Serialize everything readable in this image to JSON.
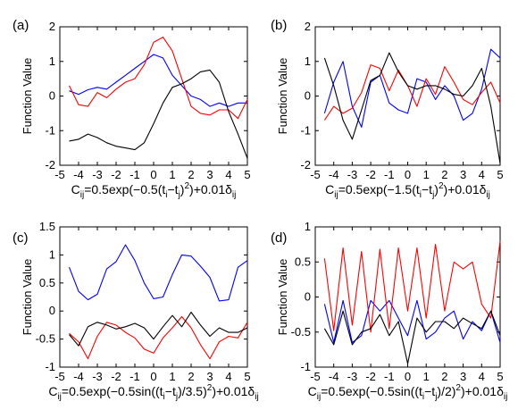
{
  "chart_data": [
    {
      "type": "line",
      "panel": "(a)",
      "ylabel": "Function Value",
      "xlabel_parts": [
        "C",
        "ij",
        "=0.5exp(−0.5(t",
        "i",
        "−t",
        "j",
        ")",
        "2",
        ")+0.01δ",
        "ij"
      ],
      "xlim": [
        -5,
        5
      ],
      "ylim": [
        -2,
        2
      ],
      "xticks": [
        "-5",
        "-4",
        "-3",
        "-2",
        "-1",
        "0",
        "1",
        "2",
        "3",
        "4",
        "5"
      ],
      "yticks": [
        "-2",
        "-1",
        "0",
        "1",
        "2"
      ],
      "x": [
        -4.5,
        -4,
        -3.5,
        -3,
        -2.5,
        -2,
        -1.5,
        -1,
        -0.5,
        0,
        0.5,
        1,
        1.5,
        2,
        2.5,
        3,
        3.5,
        4,
        4.5,
        5
      ],
      "series": [
        {
          "color": "#0000ff",
          "values": [
            0.15,
            0.05,
            0.18,
            0.25,
            0.2,
            0.4,
            0.6,
            0.8,
            1.0,
            1.2,
            1.1,
            0.6,
            0.3,
            0.0,
            -0.1,
            -0.3,
            -0.2,
            -0.3,
            -0.2,
            -0.2
          ]
        },
        {
          "color": "#ff0000",
          "values": [
            0.3,
            -0.25,
            -0.3,
            0.1,
            -0.05,
            0.2,
            0.4,
            0.5,
            0.9,
            1.55,
            1.7,
            1.3,
            0.5,
            -0.3,
            -0.5,
            -0.55,
            -0.4,
            -0.4,
            -0.65,
            -0.1
          ]
        },
        {
          "color": "#000000",
          "values": [
            -1.3,
            -1.25,
            -1.1,
            -1.2,
            -1.35,
            -1.45,
            -1.5,
            -1.55,
            -1.35,
            -0.8,
            -0.2,
            0.25,
            0.35,
            0.5,
            0.7,
            0.75,
            0.4,
            -0.45,
            -1.1,
            -1.8
          ]
        }
      ]
    },
    {
      "type": "line",
      "panel": "(b)",
      "ylabel": "Function Value",
      "xlabel_parts": [
        "C",
        "ij",
        "=0.5exp(−1.5(t",
        "i",
        "−t",
        "j",
        ")",
        "2",
        ")+0.01δ",
        "ij"
      ],
      "xlim": [
        -5,
        5
      ],
      "ylim": [
        -2,
        2
      ],
      "xticks": [
        "-5",
        "-4",
        "-3",
        "-2",
        "-1",
        "0",
        "1",
        "2",
        "3",
        "4",
        "5"
      ],
      "yticks": [
        "-2",
        "-1",
        "0",
        "1",
        "2"
      ],
      "x": [
        -4.5,
        -4,
        -3.5,
        -3,
        -2.5,
        -2,
        -1.5,
        -1,
        -0.5,
        0,
        0.5,
        1,
        1.5,
        2,
        2.5,
        3,
        3.5,
        4,
        4.5,
        5
      ],
      "series": [
        {
          "color": "#0000ff",
          "values": [
            -0.5,
            0.4,
            1.0,
            -0.3,
            -0.9,
            0.4,
            0.6,
            -0.2,
            -0.4,
            -0.5,
            0.5,
            0.4,
            -0.1,
            0.3,
            0.0,
            -0.7,
            -0.5,
            0.2,
            1.35,
            1.1
          ]
        },
        {
          "color": "#ff0000",
          "values": [
            -0.7,
            -0.3,
            -0.5,
            -0.35,
            0.1,
            0.9,
            0.8,
            0.15,
            0.75,
            0.3,
            -0.3,
            0.5,
            0.05,
            0.85,
            0.4,
            -0.1,
            -0.25,
            0.1,
            0.4,
            -0.2
          ]
        },
        {
          "color": "#000000",
          "values": [
            1.1,
            0.3,
            -0.7,
            -1.25,
            -0.4,
            0.45,
            0.6,
            1.25,
            0.7,
            0.3,
            0.2,
            0.3,
            0.3,
            0.2,
            0.05,
            0.0,
            0.3,
            0.8,
            -0.3,
            -1.95
          ]
        }
      ]
    },
    {
      "type": "line",
      "panel": "(c)",
      "ylabel": "Function Value",
      "xlabel_parts": [
        "C",
        "ij",
        "=0.5exp(−0.5sin((t",
        "i",
        "−t",
        "j",
        ")/3.5)",
        "2",
        ")+0.01δ",
        "ij"
      ],
      "xlim": [
        -5,
        5
      ],
      "ylim": [
        -1,
        1.5
      ],
      "xticks": [
        "-5",
        "-4",
        "-3",
        "-2",
        "-1",
        "0",
        "1",
        "2",
        "3",
        "4",
        "5"
      ],
      "yticks": [
        "-1",
        "-0.5",
        "0",
        "0.5",
        "1",
        "1.5"
      ],
      "x": [
        -4.5,
        -4,
        -3.5,
        -3,
        -2.5,
        -2,
        -1.5,
        -1,
        -0.5,
        0,
        0.5,
        1,
        1.5,
        2,
        2.5,
        3,
        3.5,
        4,
        4.5,
        5
      ],
      "series": [
        {
          "color": "#0000ff",
          "values": [
            0.78,
            0.35,
            0.2,
            0.3,
            0.75,
            0.88,
            1.18,
            0.9,
            0.5,
            0.22,
            0.25,
            0.65,
            1.0,
            0.98,
            0.8,
            0.6,
            0.18,
            0.2,
            0.78,
            0.9
          ]
        },
        {
          "color": "#ff0000",
          "values": [
            -0.4,
            -0.55,
            -0.85,
            -0.45,
            -0.2,
            -0.25,
            -0.38,
            -0.48,
            -0.68,
            -0.75,
            -0.48,
            -0.3,
            -0.1,
            -0.3,
            -0.6,
            -0.85,
            -0.55,
            -0.45,
            -0.48,
            -0.2
          ]
        },
        {
          "color": "#000000",
          "values": [
            -0.42,
            -0.62,
            -0.28,
            -0.2,
            -0.25,
            -0.32,
            -0.28,
            -0.22,
            -0.3,
            -0.5,
            -0.28,
            -0.08,
            -0.28,
            -0.02,
            -0.25,
            -0.45,
            -0.3,
            -0.38,
            -0.38,
            -0.3
          ]
        }
      ]
    },
    {
      "type": "line",
      "panel": "(d)",
      "ylabel": "Function Value",
      "xlabel_parts": [
        "C",
        "ij",
        "=0.5exp(−0.5sin((t",
        "i",
        "−t",
        "j",
        ")/2)",
        "2",
        ")+0.01δ",
        "ij"
      ],
      "xlim": [
        -5,
        5
      ],
      "ylim": [
        -1,
        1
      ],
      "xticks": [
        "-5",
        "-4",
        "-3",
        "-2",
        "-1",
        "0",
        "1",
        "2",
        "3",
        "4",
        "5"
      ],
      "yticks": [
        "-1",
        "-0.5",
        "0",
        "0.5",
        "1"
      ],
      "x": [
        -4.5,
        -4,
        -3.5,
        -3,
        -2.5,
        -2,
        -1.5,
        -1,
        -0.5,
        0,
        0.5,
        1,
        1.5,
        2,
        2.5,
        3,
        3.5,
        4,
        4.5,
        5
      ],
      "series": [
        {
          "color": "#0000ff",
          "values": [
            -0.1,
            -0.65,
            -0.05,
            -0.65,
            -0.55,
            -0.05,
            -0.2,
            -0.05,
            -0.3,
            -0.55,
            -0.05,
            -0.6,
            -0.5,
            -0.3,
            -0.2,
            -0.6,
            -0.35,
            -0.48,
            -0.2,
            -0.65
          ]
        },
        {
          "color": "#ff0000",
          "values": [
            0.55,
            -0.48,
            0.7,
            -0.4,
            0.65,
            -0.5,
            0.68,
            -0.45,
            0.7,
            -0.2,
            0.7,
            -0.3,
            0.75,
            -0.2,
            0.5,
            0.4,
            0.5,
            -0.1,
            -0.3,
            0.8
          ]
        },
        {
          "color": "#000000",
          "values": [
            -0.45,
            -0.68,
            -0.2,
            -0.68,
            -0.5,
            -0.45,
            -0.25,
            -0.55,
            -0.35,
            -0.95,
            -0.3,
            -0.5,
            -0.35,
            -0.35,
            -0.45,
            -0.3,
            -0.38,
            -0.45,
            -0.2,
            -0.55
          ]
        }
      ]
    }
  ]
}
